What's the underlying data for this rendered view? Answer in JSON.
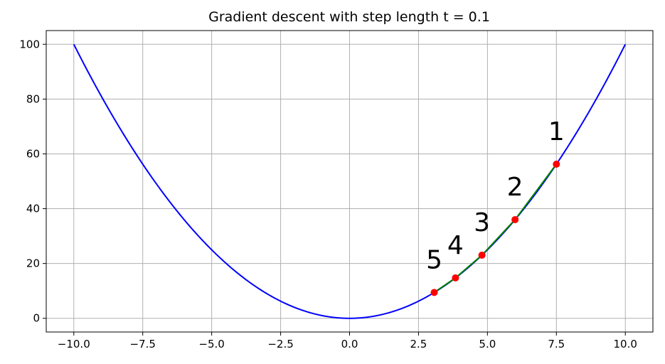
{
  "chart_data": {
    "type": "line",
    "title": "Gradient descent with step length t = 0.1",
    "xlabel": "",
    "ylabel": "",
    "xlim": [
      -11.0,
      11.0
    ],
    "ylim": [
      -5.0,
      105.0
    ],
    "grid": true,
    "x_ticks": [
      -10.0,
      -7.5,
      -5.0,
      -2.5,
      0.0,
      2.5,
      5.0,
      7.5,
      10.0
    ],
    "x_tick_labels": [
      "−10.0",
      "−7.5",
      "−5.0",
      "−2.5",
      "0.0",
      "2.5",
      "5.0",
      "7.5",
      "10.0"
    ],
    "y_ticks": [
      0,
      20,
      40,
      60,
      80,
      100
    ],
    "y_tick_labels": [
      "0",
      "20",
      "40",
      "60",
      "80",
      "100"
    ],
    "curve": {
      "function": "x^2",
      "x_range": [
        -10.0,
        10.0
      ],
      "color": "#0000ff"
    },
    "path_color": "#008000",
    "point_color": "#ff0000",
    "iterates": [
      {
        "label": "1",
        "x": 7.5,
        "y": 56.25
      },
      {
        "label": "2",
        "x": 6.0,
        "y": 36.0
      },
      {
        "label": "3",
        "x": 4.8,
        "y": 23.04
      },
      {
        "label": "4",
        "x": 3.84,
        "y": 14.75
      },
      {
        "label": "5",
        "x": 3.07,
        "y": 9.44
      }
    ]
  }
}
